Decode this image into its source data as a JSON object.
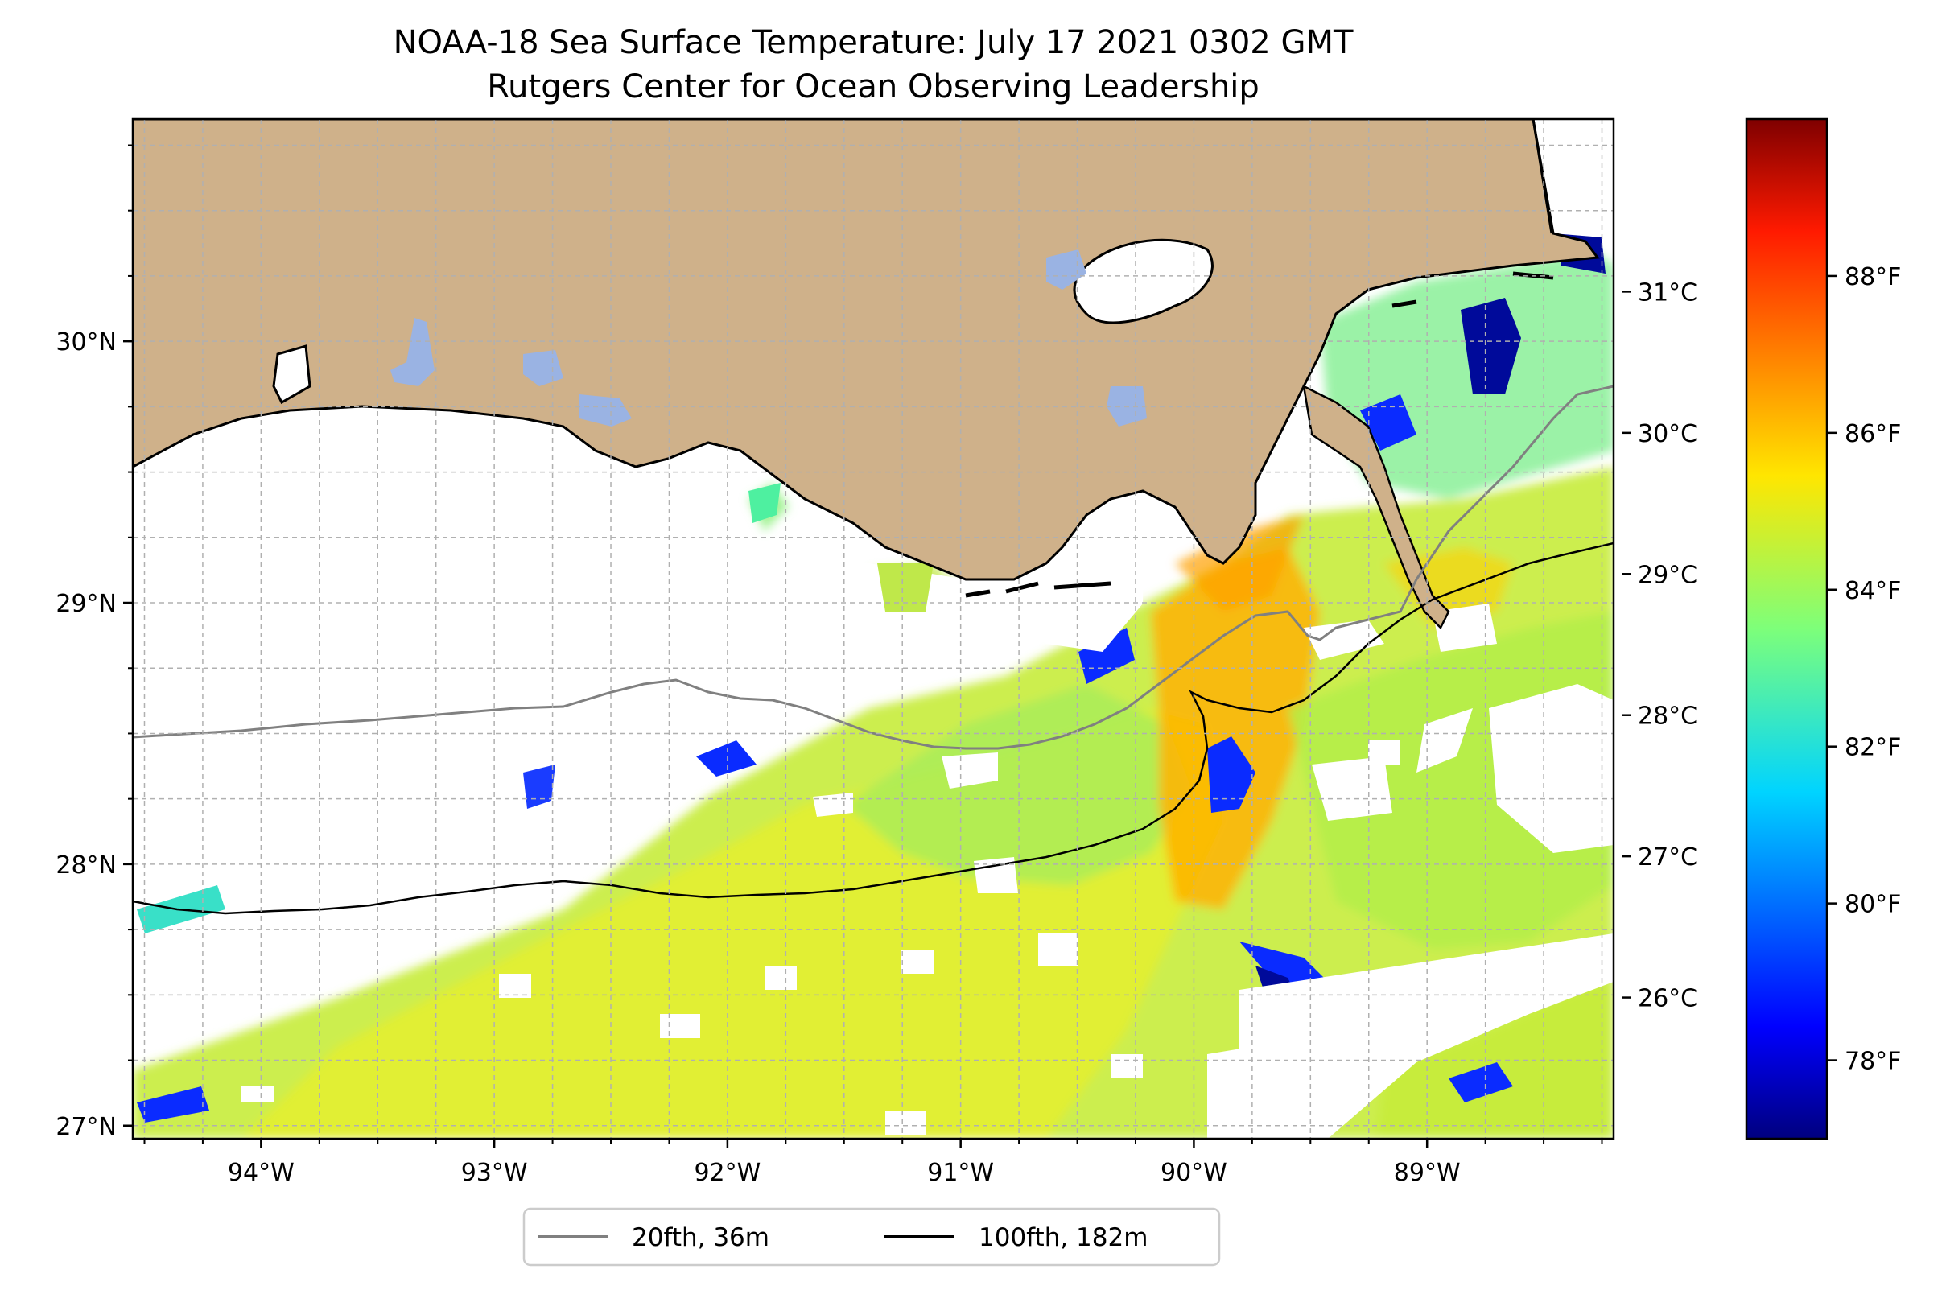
{
  "title": {
    "line1": "NOAA-18 Sea Surface Temperature: July 17 2021 0302 GMT",
    "line2": "Rutgers Center for Ocean Observing Leadership"
  },
  "colors": {
    "land": "#cfb18a",
    "lake": "#9ab3e3",
    "ocean_missing": "#ffffff",
    "coastline": "#000000",
    "grid": "#b0b0b0",
    "isobath_20fth": "#808080",
    "isobath_100fth": "#000000"
  },
  "map": {
    "lon_range": [
      -94.55,
      -88.2
    ],
    "lat_range": [
      26.95,
      30.85
    ],
    "lon_ticks": [
      {
        "value": -94,
        "label": "94°W"
      },
      {
        "value": -93,
        "label": "93°W"
      },
      {
        "value": -92,
        "label": "92°W"
      },
      {
        "value": -91,
        "label": "91°W"
      },
      {
        "value": -90,
        "label": "90°W"
      },
      {
        "value": -89,
        "label": "89°W"
      }
    ],
    "lat_ticks": [
      {
        "value": 27,
        "label": "27°N"
      },
      {
        "value": 28,
        "label": "28°N"
      },
      {
        "value": 29,
        "label": "29°N"
      },
      {
        "value": 30,
        "label": "30°N"
      }
    ],
    "gridlines": true,
    "grid_step_deg": 0.25
  },
  "colorbar": {
    "colormap": "jet",
    "celsius_ticks": [
      {
        "value": 26,
        "label": "26°C"
      },
      {
        "value": 27,
        "label": "27°C"
      },
      {
        "value": 28,
        "label": "28°C"
      },
      {
        "value": 29,
        "label": "29°C"
      },
      {
        "value": 30,
        "label": "30°C"
      },
      {
        "value": 31,
        "label": "31°C"
      }
    ],
    "fahrenheit_ticks": [
      {
        "value": 78,
        "label": "78°F"
      },
      {
        "value": 80,
        "label": "80°F"
      },
      {
        "value": 82,
        "label": "82°F"
      },
      {
        "value": 84,
        "label": "84°F"
      },
      {
        "value": 86,
        "label": "86°F"
      },
      {
        "value": 88,
        "label": "88°F"
      }
    ],
    "range_f": [
      77,
      90
    ]
  },
  "legend": {
    "placement": "bottom-center",
    "items": [
      {
        "label": "20fth, 36m",
        "color": "#808080"
      },
      {
        "label": "100fth, 182m",
        "color": "#000000"
      }
    ]
  }
}
